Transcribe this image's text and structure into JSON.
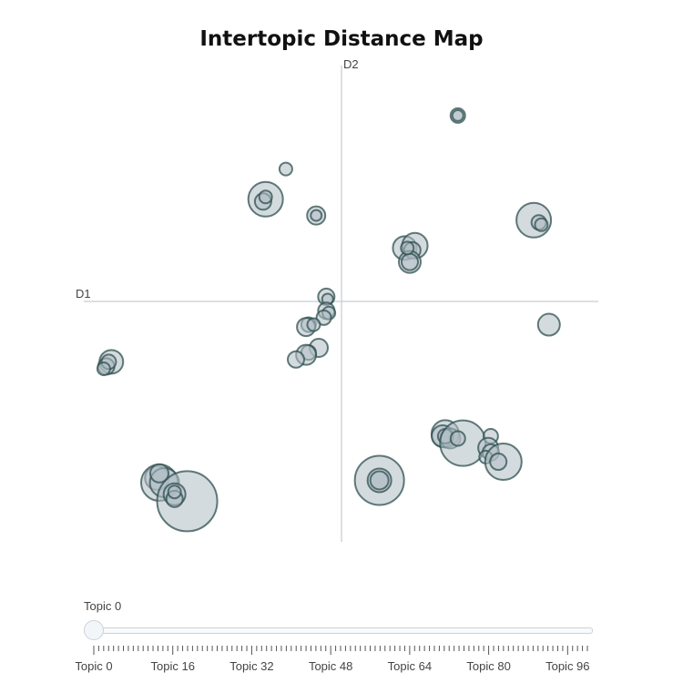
{
  "chart_data": {
    "type": "scatter",
    "title": "Intertopic Distance Map",
    "xlabel": "D1",
    "ylabel": "D2",
    "xlim": [
      -10,
      10
    ],
    "ylim": [
      -10,
      10
    ],
    "points": [
      {
        "x": 4.6,
        "y": 8.0,
        "r": 8
      },
      {
        "x": 4.6,
        "y": 8.0,
        "r": 6
      },
      {
        "x": -2.2,
        "y": 5.7,
        "r": 7
      },
      {
        "x": -3.0,
        "y": 4.4,
        "r": 19
      },
      {
        "x": -3.1,
        "y": 4.3,
        "r": 9
      },
      {
        "x": -3.0,
        "y": 4.5,
        "r": 7
      },
      {
        "x": -1.0,
        "y": 3.7,
        "r": 10
      },
      {
        "x": -1.0,
        "y": 3.7,
        "r": 6
      },
      {
        "x": 7.6,
        "y": 3.5,
        "r": 19
      },
      {
        "x": 7.8,
        "y": 3.4,
        "r": 8
      },
      {
        "x": 7.9,
        "y": 3.3,
        "r": 7
      },
      {
        "x": 2.5,
        "y": 2.3,
        "r": 13
      },
      {
        "x": 2.9,
        "y": 2.4,
        "r": 14
      },
      {
        "x": 2.8,
        "y": 2.2,
        "r": 9
      },
      {
        "x": 2.7,
        "y": 1.7,
        "r": 12
      },
      {
        "x": 2.7,
        "y": 1.7,
        "r": 9
      },
      {
        "x": 2.6,
        "y": 2.3,
        "r": 7
      },
      {
        "x": -0.6,
        "y": 0.2,
        "r": 9
      },
      {
        "x": -0.55,
        "y": 0.1,
        "r": 6
      },
      {
        "x": -0.6,
        "y": -0.4,
        "r": 9
      },
      {
        "x": -0.5,
        "y": -0.5,
        "r": 7
      },
      {
        "x": -0.7,
        "y": -0.7,
        "r": 8
      },
      {
        "x": -1.3,
        "y": -1.0,
        "r": 8
      },
      {
        "x": -1.4,
        "y": -1.1,
        "r": 10
      },
      {
        "x": -1.1,
        "y": -1.0,
        "r": 7
      },
      {
        "x": 8.2,
        "y": -1.0,
        "r": 12
      },
      {
        "x": -0.9,
        "y": -2.0,
        "r": 10
      },
      {
        "x": -1.3,
        "y": -2.2,
        "r": 8
      },
      {
        "x": -1.4,
        "y": -2.3,
        "r": 11
      },
      {
        "x": -1.8,
        "y": -2.5,
        "r": 9
      },
      {
        "x": -9.1,
        "y": -2.6,
        "r": 13
      },
      {
        "x": -9.3,
        "y": -2.8,
        "r": 9
      },
      {
        "x": -9.2,
        "y": -2.6,
        "r": 8
      },
      {
        "x": -9.4,
        "y": -2.9,
        "r": 7
      },
      {
        "x": 4.1,
        "y": -5.7,
        "r": 15
      },
      {
        "x": 4.0,
        "y": -5.8,
        "r": 12
      },
      {
        "x": 4.3,
        "y": -5.9,
        "r": 11
      },
      {
        "x": 4.1,
        "y": -5.8,
        "r": 8
      },
      {
        "x": 4.8,
        "y": -6.1,
        "r": 25
      },
      {
        "x": 4.6,
        "y": -5.9,
        "r": 8
      },
      {
        "x": 5.9,
        "y": -5.8,
        "r": 8
      },
      {
        "x": 5.8,
        "y": -6.3,
        "r": 11
      },
      {
        "x": 5.9,
        "y": -6.5,
        "r": 9
      },
      {
        "x": 5.7,
        "y": -6.7,
        "r": 7
      },
      {
        "x": 6.4,
        "y": -6.9,
        "r": 20
      },
      {
        "x": 6.2,
        "y": -6.9,
        "r": 9
      },
      {
        "x": 1.5,
        "y": -7.7,
        "r": 27
      },
      {
        "x": 1.5,
        "y": -7.7,
        "r": 13
      },
      {
        "x": 1.5,
        "y": -7.7,
        "r": 10
      },
      {
        "x": -7.3,
        "y": -7.6,
        "r": 13
      },
      {
        "x": -7.2,
        "y": -7.8,
        "r": 20
      },
      {
        "x": -7.0,
        "y": -7.8,
        "r": 16
      },
      {
        "x": -7.2,
        "y": -7.4,
        "r": 10
      },
      {
        "x": -6.1,
        "y": -8.6,
        "r": 33
      },
      {
        "x": -6.6,
        "y": -8.3,
        "r": 12
      },
      {
        "x": -6.6,
        "y": -8.5,
        "r": 9
      },
      {
        "x": -6.6,
        "y": -8.2,
        "r": 7
      }
    ],
    "grid": false,
    "colors": {
      "fill": "#b0bec5",
      "stroke": "#2f4f4f",
      "axis": "#cfd6db"
    }
  },
  "slider": {
    "label": "Topic 0",
    "tick_labels": [
      "Topic 0",
      "Topic 16",
      "Topic 32",
      "Topic 48",
      "Topic 64",
      "Topic 80",
      "Topic 96"
    ]
  }
}
